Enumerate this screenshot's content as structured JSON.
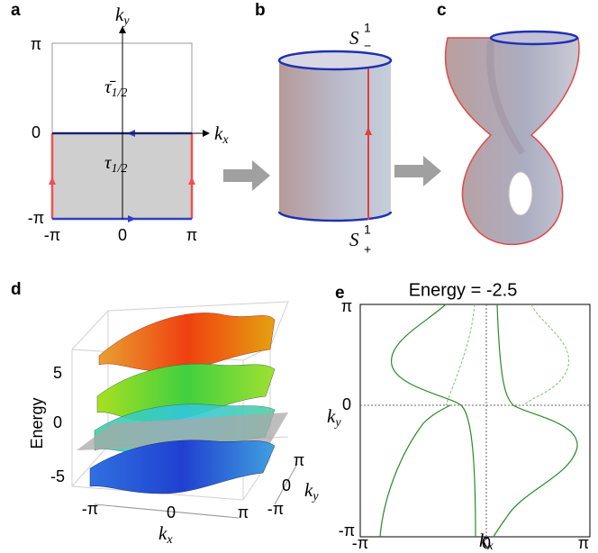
{
  "panels": [
    {
      "label": "a",
      "y_axis": {
        "symbol": "k",
        "subscript": "y"
      },
      "x_axis": {
        "symbol": "k",
        "subscript": "x"
      },
      "y_ticks": [
        "π",
        "0",
        "-π"
      ],
      "x_ticks": [
        "-π",
        "0",
        "π"
      ],
      "regions": [
        {
          "symbol": "τ̄",
          "subscript": "1/2"
        },
        {
          "symbol": "τ",
          "subscript": "1/2"
        }
      ]
    },
    {
      "label": "b",
      "circles": [
        {
          "symbol": "S",
          "superscript": "1",
          "subscript": "−"
        },
        {
          "symbol": "S",
          "superscript": "1",
          "subscript": "+"
        }
      ]
    },
    {
      "label": "c"
    },
    {
      "label": "d",
      "y_axis_title": "Energy",
      "y_ticks": [
        "5",
        "0",
        "-5"
      ],
      "x_ticks": [
        "-π",
        "0",
        "π"
      ],
      "x_axis": {
        "symbol": "k",
        "subscript": "x"
      },
      "depth_ticks": [
        "π",
        "0",
        "-π"
      ],
      "depth_axis": {
        "symbol": "k",
        "subscript": "y"
      }
    },
    {
      "label": "e",
      "title": "Energy = -2.5",
      "y_ticks": [
        "π",
        "0",
        "-π"
      ],
      "x_ticks": [
        "-π",
        "0",
        "π"
      ],
      "y_axis": {
        "symbol": "k",
        "subscript": "y"
      },
      "x_axis": {
        "symbol": "k",
        "subscript": "x"
      }
    }
  ]
}
